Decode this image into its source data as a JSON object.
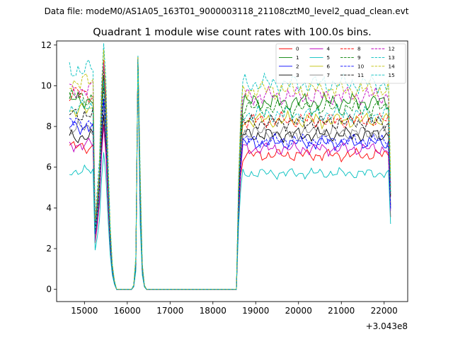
{
  "chart_data": {
    "type": "line",
    "suptitle": "Data file: modeM0/AS1A05_163T01_9000003118_21108cztM0_level2_quad_clean.evt",
    "title": "Quadrant 1 module wise count rates with 100.0s bins.",
    "xlabel": "",
    "ylabel": "",
    "x_offset_label": "+3.043e8",
    "xlim": [
      14350,
      22550
    ],
    "ylim": [
      -0.6,
      12.2
    ],
    "x_ticks": [
      15000,
      16000,
      17000,
      18000,
      19000,
      20000,
      21000,
      22000
    ],
    "x_tick_labels": [
      "15000",
      "16000",
      "17000",
      "18000",
      "19000",
      "20000",
      "21000",
      "22000"
    ],
    "y_ticks": [
      0,
      2,
      4,
      6,
      8,
      10,
      12
    ],
    "y_tick_labels": [
      "0",
      "2",
      "4",
      "6",
      "8",
      "10",
      "12"
    ],
    "grid": false,
    "legend_position": "top-right",
    "legend_columns": 4,
    "x_range": [
      14650,
      22150
    ],
    "x_step": 50,
    "gaps": [
      [
        15800,
        16100
      ],
      [
        16450,
        18550
      ]
    ],
    "peaks": {
      "15250": 0.33,
      "15300": 0.45,
      "15350": 0.6,
      "15400": 0.95,
      "15450": 1.15,
      "15500": 0.95,
      "15550": 0.6,
      "15600": 0.3,
      "15650": 0.12,
      "15700": 0.04,
      "15750": 0.0,
      "16150": 0.02,
      "16200": 0.15,
      "16250": 1.32,
      "16300": 0.55,
      "16350": 0.12,
      "16400": 0.02,
      "18550": 0.07,
      "18600": 0.55,
      "18650": 0.85,
      "22150": 0.55
    },
    "peak_at": 16250,
    "series": [
      {
        "name": "0",
        "color": "#ff0000",
        "dash": false,
        "pre": 7.0,
        "post": 6.6,
        "peak": 11.2
      },
      {
        "name": "1",
        "color": "#008000",
        "dash": false,
        "pre": 9.3,
        "post": 9.2,
        "peak": 11.4
      },
      {
        "name": "2",
        "color": "#0000ff",
        "dash": false,
        "pre": 8.0,
        "post": 7.2,
        "peak": 11.3
      },
      {
        "name": "3",
        "color": "#000000",
        "dash": false,
        "pre": 7.5,
        "post": 7.6,
        "peak": 11.3
      },
      {
        "name": "4",
        "color": "#bf00bf",
        "dash": false,
        "pre": 7.1,
        "post": 6.9,
        "peak": 11.2
      },
      {
        "name": "5",
        "color": "#00bfbf",
        "dash": false,
        "pre": 5.8,
        "post": 5.7,
        "peak": 11.1
      },
      {
        "name": "6",
        "color": "#bfbf00",
        "dash": false,
        "pre": 8.8,
        "post": 8.3,
        "peak": 11.3
      },
      {
        "name": "7",
        "color": "#808080",
        "dash": false,
        "pre": 7.9,
        "post": 7.7,
        "peak": 11.2
      },
      {
        "name": "8",
        "color": "#ff0000",
        "dash": true,
        "pre": 9.6,
        "post": 8.3,
        "peak": 11.4
      },
      {
        "name": "9",
        "color": "#008000",
        "dash": true,
        "pre": 9.4,
        "post": 8.9,
        "peak": 11.4
      },
      {
        "name": "10",
        "color": "#0000ff",
        "dash": true,
        "pre": 8.2,
        "post": 7.3,
        "peak": 11.3
      },
      {
        "name": "11",
        "color": "#000000",
        "dash": true,
        "pre": 8.6,
        "post": 8.2,
        "peak": 11.3
      },
      {
        "name": "12",
        "color": "#bf00bf",
        "dash": true,
        "pre": 9.8,
        "post": 9.5,
        "peak": 11.4
      },
      {
        "name": "13",
        "color": "#00bfbf",
        "dash": true,
        "pre": 10.8,
        "post": 10.1,
        "peak": 11.5
      },
      {
        "name": "14",
        "color": "#bfbf00",
        "dash": true,
        "pre": 10.2,
        "post": 9.8,
        "peak": 11.4
      },
      {
        "name": "15",
        "color": "#00bfbf",
        "dash": true,
        "pre": 8.9,
        "post": 8.6,
        "peak": 11.3
      }
    ]
  }
}
